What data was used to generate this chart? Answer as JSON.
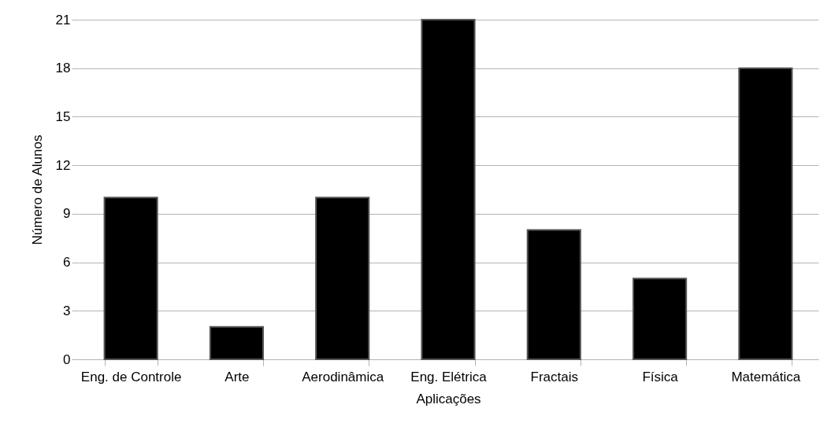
{
  "chart_data": {
    "type": "bar",
    "xlabel": "Aplicações",
    "ylabel": "Número de Alunos",
    "categories": [
      "Eng. de Controle",
      "Arte",
      "Aerodinâmica",
      "Eng. Elétrica",
      "Fractais",
      "Física",
      "Matemática"
    ],
    "values": [
      10,
      2,
      10,
      21,
      8,
      5,
      18
    ],
    "color": "#000000",
    "ylim": [
      0,
      21
    ],
    "yticks": [
      0,
      3,
      6,
      9,
      12,
      15,
      18,
      21
    ],
    "grid": "y"
  }
}
